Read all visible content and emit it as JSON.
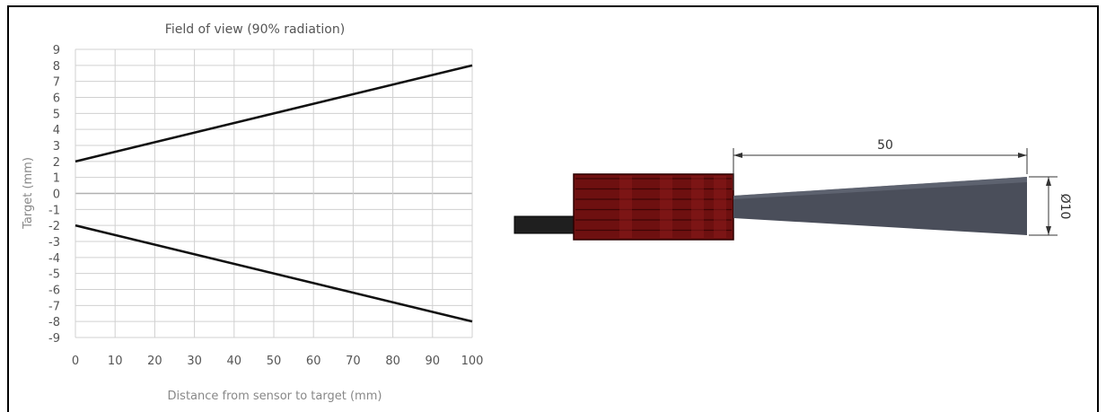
{
  "chart_data": {
    "type": "line",
    "title": "Field of view (90% radiation)",
    "xlabel": "Distance from sensor to target (mm)",
    "ylabel": "Target (mm)",
    "xlim": [
      0,
      100
    ],
    "ylim": [
      -9,
      9
    ],
    "xticks": [
      "0",
      "10",
      "20",
      "30",
      "40",
      "50",
      "60",
      "70",
      "80",
      "90",
      "100"
    ],
    "yticks": [
      "9",
      "8",
      "7",
      "6",
      "5",
      "4",
      "3",
      "2",
      "1",
      "0",
      "-1",
      "-2",
      "-3",
      "-4",
      "-5",
      "-6",
      "-7",
      "-8",
      "-9"
    ],
    "grid": true,
    "series": [
      {
        "x": [
          0,
          100
        ],
        "y": [
          2,
          8
        ]
      },
      {
        "x": [
          0,
          100
        ],
        "y": [
          -2,
          -8
        ]
      }
    ]
  },
  "diagram": {
    "length_label": "50",
    "diameter_label": "Ø10"
  },
  "colors": {
    "line": "#111111",
    "grid": "#d0d0d0",
    "zero_line": "#b0b0b0",
    "text": "#555555",
    "sensor_body": "#7a1212",
    "cone": "#4b4f5c",
    "cable": "#222222"
  }
}
